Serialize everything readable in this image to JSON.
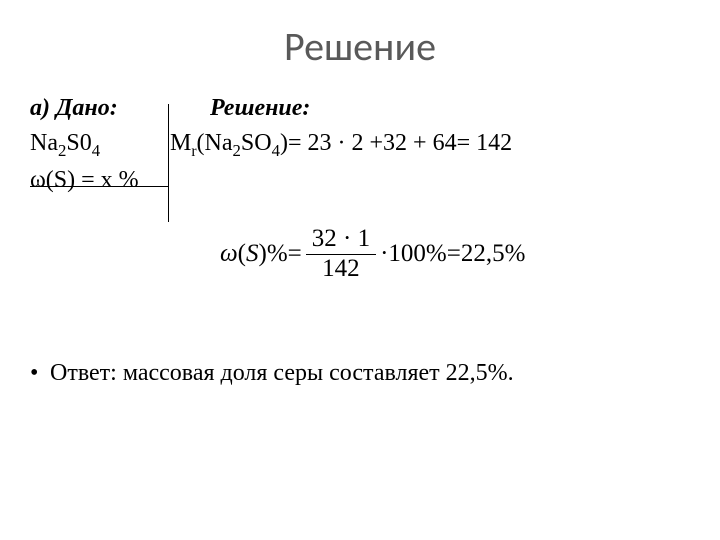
{
  "title": "Решение",
  "given": {
    "label": "а) Дано:",
    "line1_pre": "Na",
    "line1_sub1": "2",
    "line1_mid": "S0",
    "line1_sub2": "4",
    "line2": "ω(S) = x %"
  },
  "solution": {
    "label": "Решение:",
    "mr_pre": "M",
    "mr_sub": "r",
    "mr_open": "(Na",
    "mr_s1": "2",
    "mr_mid": "SO",
    "mr_s2": "4",
    "mr_rest": ")= 23 · 2 +32 + 64= 142"
  },
  "formula": {
    "omega": "ω",
    "arg_open": "(",
    "arg_S": "S",
    "arg_close": ")",
    "pct1": "%",
    "eq1": " = ",
    "num": "32 · 1",
    "den": "142",
    "dot": " · ",
    "hundred": "100",
    "pct2": "%",
    "eq2": " = ",
    "result": "22,5",
    "pct3": "%"
  },
  "answer": {
    "bullet": "•",
    "text": "Ответ: массовая доля серы составляет 22,5%."
  },
  "colors": {
    "title": "#595959",
    "text": "#000000",
    "background": "#ffffff"
  }
}
